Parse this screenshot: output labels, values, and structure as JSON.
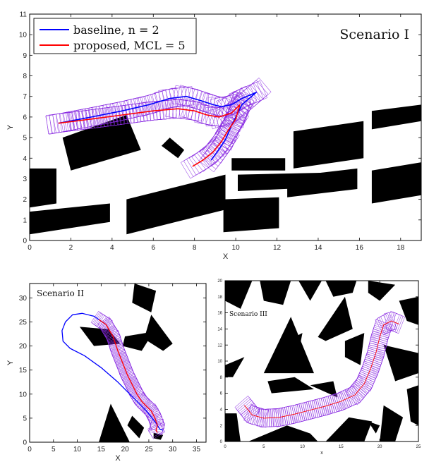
{
  "chart_data": [
    {
      "type": "line",
      "title": "Scenario I",
      "xlabel": "X",
      "ylabel": "Y",
      "xlim": [
        0,
        19
      ],
      "ylim": [
        0,
        11
      ],
      "xticks": [
        "0",
        "2",
        "4",
        "6",
        "8",
        "10",
        "12",
        "14",
        "16",
        "18"
      ],
      "yticks": [
        "0",
        "1",
        "2",
        "3",
        "4",
        "5",
        "6",
        "7",
        "8",
        "9",
        "10",
        "11"
      ],
      "legend_position": "top-left",
      "legend": [
        "baseline, n = 2",
        "proposed, MCL = 5"
      ],
      "series": [
        {
          "name": "baseline, n = 2",
          "color": "#0000ff",
          "x": [
            1.4,
            3.0,
            4.5,
            5.8,
            6.8,
            7.6,
            8.3,
            8.9,
            9.3,
            9.8,
            10.3,
            11.0,
            10.3,
            9.8,
            9.5,
            9.1,
            8.8
          ],
          "y": [
            5.7,
            6.0,
            6.3,
            6.6,
            6.9,
            7.0,
            6.8,
            6.6,
            6.5,
            6.6,
            6.9,
            7.2,
            6.6,
            5.6,
            4.9,
            4.3,
            3.9
          ]
        },
        {
          "name": "proposed, MCL = 5",
          "color": "#ff0000",
          "x": [
            1.4,
            3.0,
            4.5,
            6.0,
            7.2,
            8.0,
            8.6,
            9.2,
            9.8,
            10.2,
            10.0,
            9.6,
            9.3,
            8.9,
            8.4,
            7.9
          ],
          "y": [
            5.7,
            5.9,
            6.1,
            6.3,
            6.4,
            6.3,
            6.1,
            6.0,
            6.2,
            6.6,
            5.9,
            5.3,
            4.8,
            4.3,
            3.9,
            3.6
          ]
        }
      ]
    },
    {
      "type": "line",
      "title": "Scenario II",
      "xlabel": "X",
      "ylabel": "Y",
      "xlim": [
        0,
        37
      ],
      "ylim": [
        0,
        33
      ],
      "xticks": [
        "0",
        "5",
        "10",
        "15",
        "20",
        "25",
        "30",
        "35"
      ],
      "yticks": [
        "0",
        "5",
        "10",
        "15",
        "20",
        "25",
        "30"
      ],
      "series": [
        {
          "name": "baseline",
          "color": "#0000ff",
          "x": [
            16.0,
            13.5,
            11.0,
            9.0,
            7.5,
            6.8,
            7.0,
            8.5,
            11.5,
            15.0,
            18.5,
            21.5,
            24.5,
            26.5,
            27.3,
            28.0
          ],
          "y": [
            24.5,
            26.2,
            26.8,
            26.5,
            25.0,
            23.2,
            21.0,
            19.5,
            18.0,
            15.5,
            12.5,
            9.5,
            6.5,
            4.0,
            2.7,
            2.5
          ]
        },
        {
          "name": "proposed",
          "color": "#ff0000",
          "x": [
            14.5,
            16.0,
            17.5,
            18.5,
            19.5,
            20.5,
            21.5,
            22.5,
            23.5,
            24.5,
            25.5,
            26.3,
            26.8,
            26.5,
            26.8
          ],
          "y": [
            25.5,
            24.5,
            22.0,
            19.0,
            16.5,
            14.0,
            12.0,
            10.0,
            8.5,
            7.5,
            6.5,
            5.0,
            3.5,
            2.5,
            2.0
          ]
        }
      ]
    },
    {
      "type": "line",
      "title": "Scenario III",
      "xlabel": "x",
      "ylabel": "y",
      "xlim": [
        0,
        25
      ],
      "ylim": [
        0,
        20
      ],
      "xticks": [
        "0",
        "5",
        "10",
        "15",
        "20",
        "25"
      ],
      "yticks": [
        "0",
        "2",
        "4",
        "6",
        "8",
        "10",
        "12",
        "14",
        "16",
        "18",
        "20"
      ],
      "series": [
        {
          "name": "proposed",
          "color": "#ff0000",
          "x": [
            2.5,
            3.5,
            5.0,
            7.0,
            9.0,
            11.0,
            13.0,
            15.0,
            16.8,
            18.0,
            18.8,
            19.5,
            20.0,
            20.5,
            21.5,
            22.5
          ],
          "y": [
            4.5,
            3.3,
            2.9,
            3.0,
            3.4,
            3.9,
            4.4,
            5.0,
            5.8,
            7.2,
            9.0,
            11.0,
            13.0,
            14.5,
            15.0,
            14.6
          ]
        }
      ]
    }
  ]
}
